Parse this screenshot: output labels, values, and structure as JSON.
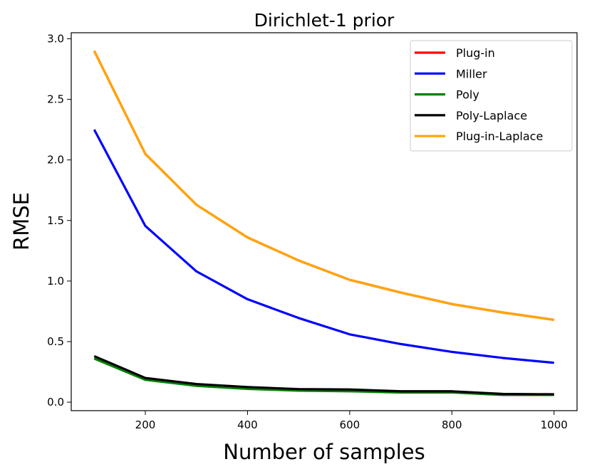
{
  "chart_data": {
    "type": "line",
    "title": "Dirichlet-1 prior",
    "xlabel": "Number of samples",
    "ylabel": "RMSE",
    "x": [
      100,
      200,
      300,
      400,
      500,
      600,
      700,
      800,
      900,
      1000
    ],
    "xlim": [
      55,
      1045
    ],
    "ylim": [
      -0.07,
      3.05
    ],
    "xticks": [
      200,
      400,
      600,
      800,
      1000
    ],
    "xtick_labels": [
      "200",
      "400",
      "600",
      "800",
      "1000"
    ],
    "yticks": [
      0.0,
      0.5,
      1.0,
      1.5,
      2.0,
      2.5,
      3.0
    ],
    "ytick_labels": [
      "0.0",
      "0.5",
      "1.0",
      "1.5",
      "2.0",
      "2.5",
      "3.0"
    ],
    "grid": false,
    "legend_position": "top-right",
    "series": [
      {
        "name": "Plug-in",
        "color": "#ff0000",
        "values": [
          2.9,
          2.05,
          1.63,
          1.36,
          1.17,
          1.01,
          0.905,
          0.81,
          0.74,
          0.68
        ]
      },
      {
        "name": "Miller",
        "color": "#0000ff",
        "values": [
          2.25,
          1.455,
          1.08,
          0.85,
          0.695,
          0.56,
          0.48,
          0.415,
          0.365,
          0.325
        ]
      },
      {
        "name": "Poly",
        "color": "#008000",
        "values": [
          0.36,
          0.185,
          0.135,
          0.11,
          0.095,
          0.09,
          0.08,
          0.08,
          0.06,
          0.06
        ]
      },
      {
        "name": "Poly-Laplace",
        "color": "#000000",
        "values": [
          0.38,
          0.2,
          0.15,
          0.125,
          0.108,
          0.105,
          0.09,
          0.09,
          0.068,
          0.065
        ]
      },
      {
        "name": "Plug-in-Laplace",
        "color": "#ffa500",
        "values": [
          2.9,
          2.05,
          1.63,
          1.36,
          1.17,
          1.01,
          0.905,
          0.81,
          0.74,
          0.68
        ]
      }
    ]
  }
}
